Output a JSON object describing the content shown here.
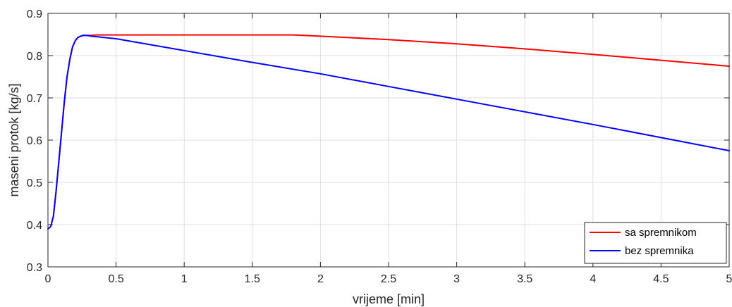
{
  "chart_data": {
    "type": "line",
    "title": "",
    "xlabel": "vrijeme [min]",
    "ylabel": "maseni protok [kg/s]",
    "xlim": [
      0,
      5
    ],
    "ylim": [
      0.3,
      0.9
    ],
    "xticks": [
      0,
      0.5,
      1,
      1.5,
      2,
      2.5,
      3,
      3.5,
      4,
      4.5,
      5
    ],
    "xtick_labels": [
      "0",
      "0.5",
      "1",
      "1.5",
      "2",
      "2.5",
      "3",
      "3.5",
      "4",
      "4.5",
      "5"
    ],
    "yticks": [
      0.3,
      0.4,
      0.5,
      0.6,
      0.7,
      0.8,
      0.9
    ],
    "ytick_labels": [
      "0.3",
      "0.4",
      "0.5",
      "0.6",
      "0.7",
      "0.8",
      "0.9"
    ],
    "grid": true,
    "legend_position": "bottom-right",
    "series": [
      {
        "name": "sa spremnikom",
        "color": "#ff0000",
        "x": [
          0,
          0.02,
          0.04,
          0.06,
          0.08,
          0.1,
          0.12,
          0.14,
          0.16,
          0.18,
          0.2,
          0.22,
          0.24,
          0.26,
          0.28,
          0.3,
          0.32,
          0.35,
          0.5,
          1.0,
          1.5,
          1.8,
          2.0,
          2.5,
          3.0,
          3.5,
          4.0,
          4.5,
          5.0
        ],
        "y": [
          0.39,
          0.395,
          0.42,
          0.48,
          0.55,
          0.62,
          0.69,
          0.75,
          0.79,
          0.82,
          0.835,
          0.843,
          0.846,
          0.848,
          0.848,
          0.848,
          0.848,
          0.849,
          0.849,
          0.849,
          0.849,
          0.849,
          0.846,
          0.838,
          0.828,
          0.816,
          0.803,
          0.789,
          0.775
        ]
      },
      {
        "name": "bez spremnika",
        "color": "#0000ff",
        "x": [
          0,
          0.02,
          0.04,
          0.06,
          0.08,
          0.1,
          0.12,
          0.14,
          0.16,
          0.18,
          0.2,
          0.22,
          0.24,
          0.26,
          0.28,
          0.3,
          0.32,
          0.5,
          1.0,
          1.5,
          2.0,
          2.5,
          3.0,
          3.5,
          4.0,
          4.5,
          5.0
        ],
        "y": [
          0.39,
          0.395,
          0.42,
          0.48,
          0.55,
          0.62,
          0.69,
          0.75,
          0.79,
          0.82,
          0.835,
          0.843,
          0.846,
          0.848,
          0.848,
          0.847,
          0.846,
          0.84,
          0.812,
          0.784,
          0.757,
          0.727,
          0.697,
          0.667,
          0.637,
          0.606,
          0.575
        ]
      }
    ]
  }
}
